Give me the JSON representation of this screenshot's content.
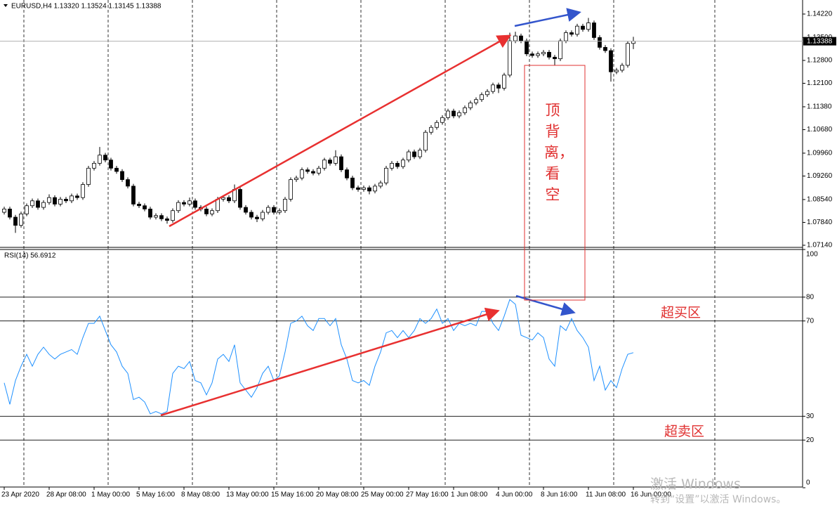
{
  "chart_data": [
    {
      "type": "candlestick",
      "title": "EURUSD,H4  1.13320 1.13524 1.13145 1.13388",
      "open": [
        1.0815,
        1.0825,
        1.08,
        1.0775,
        1.081,
        1.0835,
        1.085,
        1.083,
        1.0845,
        1.086,
        1.084,
        1.0855,
        1.085,
        1.0865,
        1.086,
        1.09,
        1.095,
        1.0965,
        1.099,
        1.0975,
        1.095,
        1.094,
        1.0915,
        1.0895,
        1.084,
        1.0835,
        1.0825,
        1.08,
        1.0805,
        1.0795,
        1.079,
        1.082,
        1.0845,
        1.084,
        1.085,
        1.083,
        1.0825,
        1.081,
        1.082,
        1.0855,
        1.086,
        1.085,
        1.0885,
        1.083,
        1.0815,
        1.08,
        1.0795,
        1.0815,
        1.083,
        1.0815,
        1.082,
        1.0855,
        1.0915,
        1.092,
        1.0945,
        1.094,
        1.0935,
        1.095,
        1.0975,
        1.0965,
        1.0985,
        1.0945,
        1.092,
        1.089,
        1.0885,
        1.089,
        1.088,
        1.0895,
        1.0905,
        1.095,
        1.0965,
        1.0955,
        1.0975,
        1.1,
        1.0985,
        1.1005,
        1.106,
        1.1075,
        1.109,
        1.1105,
        1.1125,
        1.111,
        1.112,
        1.1135,
        1.115,
        1.116,
        1.1175,
        1.1185,
        1.1205,
        1.1195,
        1.1235,
        1.134,
        1.1355,
        1.134,
        1.13,
        1.1295,
        1.13,
        1.1305,
        1.129,
        1.1285,
        1.134,
        1.1365,
        1.136,
        1.1385,
        1.1375,
        1.1395,
        1.135,
        1.132,
        1.131,
        1.1245,
        1.125,
        1.1265,
        1.1332
      ],
      "high": [
        1.0832,
        1.0832,
        1.0807,
        1.0817,
        1.0842,
        1.0857,
        1.0857,
        1.0852,
        1.087,
        1.0867,
        1.0862,
        1.0862,
        1.0872,
        1.0872,
        1.0907,
        1.0957,
        1.0972,
        1.1015,
        1.0997,
        1.0982,
        1.0957,
        1.0947,
        1.0922,
        1.0902,
        1.0847,
        1.0842,
        1.0832,
        1.0812,
        1.0812,
        1.0802,
        1.0827,
        1.0852,
        1.0852,
        1.086,
        1.0857,
        1.0837,
        1.0832,
        1.0827,
        1.0862,
        1.0867,
        1.0867,
        1.09,
        1.0892,
        1.0837,
        1.0822,
        1.0807,
        1.0822,
        1.0837,
        1.0837,
        1.0827,
        1.0862,
        1.0922,
        1.0927,
        1.0952,
        1.0952,
        1.0947,
        1.0957,
        1.0982,
        1.0982,
        1.1005,
        1.0992,
        1.0952,
        1.0927,
        1.0897,
        1.0897,
        1.0897,
        1.0902,
        1.0912,
        1.0957,
        1.0972,
        1.0972,
        1.0982,
        1.1007,
        1.1007,
        1.1012,
        1.1067,
        1.1082,
        1.1097,
        1.1112,
        1.1132,
        1.1132,
        1.1127,
        1.1142,
        1.1157,
        1.1167,
        1.1182,
        1.1192,
        1.1212,
        1.1212,
        1.1242,
        1.1365,
        1.1368,
        1.1362,
        1.1347,
        1.1307,
        1.1307,
        1.1312,
        1.1312,
        1.1297,
        1.1347,
        1.1372,
        1.1372,
        1.1392,
        1.1392,
        1.141,
        1.1402,
        1.1357,
        1.1327,
        1.1317,
        1.1257,
        1.1272,
        1.1339,
        1.13524
      ],
      "low": [
        1.0808,
        1.0793,
        1.0752,
        1.0768,
        1.0803,
        1.0828,
        1.0823,
        1.0823,
        1.0838,
        1.0833,
        1.0833,
        1.0843,
        1.0843,
        1.0853,
        1.0853,
        1.0893,
        1.0943,
        1.0958,
        1.0968,
        1.0943,
        1.0933,
        1.0908,
        1.0888,
        1.0833,
        1.0828,
        1.0818,
        1.0793,
        1.0793,
        1.0788,
        1.078,
        1.0783,
        1.0813,
        1.0833,
        1.0833,
        1.0823,
        1.0818,
        1.0803,
        1.0803,
        1.0813,
        1.0848,
        1.0843,
        1.0843,
        1.0823,
        1.0808,
        1.0793,
        1.0785,
        1.0788,
        1.0808,
        1.0808,
        1.0808,
        1.0813,
        1.0848,
        1.0908,
        1.0913,
        1.0933,
        1.0928,
        1.0928,
        1.0943,
        1.0958,
        1.0958,
        1.0938,
        1.0913,
        1.0883,
        1.0878,
        1.0878,
        1.087,
        1.0873,
        1.0888,
        1.0898,
        1.0943,
        1.0948,
        1.0948,
        1.0968,
        1.0978,
        1.0978,
        1.0998,
        1.1053,
        1.1068,
        1.1083,
        1.1098,
        1.1103,
        1.1103,
        1.1113,
        1.1128,
        1.1143,
        1.1153,
        1.1168,
        1.1178,
        1.118,
        1.1188,
        1.1228,
        1.1333,
        1.1333,
        1.1293,
        1.1288,
        1.1288,
        1.1293,
        1.1283,
        1.1265,
        1.1278,
        1.1333,
        1.1353,
        1.1353,
        1.1368,
        1.1368,
        1.1343,
        1.1313,
        1.1303,
        1.1215,
        1.1238,
        1.1243,
        1.1258,
        1.13145
      ],
      "close": [
        1.0825,
        1.08,
        1.0775,
        1.081,
        1.0835,
        1.085,
        1.083,
        1.0845,
        1.086,
        1.084,
        1.0855,
        1.085,
        1.0865,
        1.086,
        1.09,
        1.095,
        1.0965,
        1.099,
        1.0975,
        1.095,
        1.094,
        1.0915,
        1.0895,
        1.084,
        1.0835,
        1.0825,
        1.08,
        1.0805,
        1.0795,
        1.079,
        1.082,
        1.0845,
        1.084,
        1.085,
        1.083,
        1.0825,
        1.081,
        1.082,
        1.0855,
        1.086,
        1.085,
        1.0885,
        1.083,
        1.0815,
        1.08,
        1.0795,
        1.0815,
        1.083,
        1.0815,
        1.082,
        1.0855,
        1.0915,
        1.092,
        1.0945,
        1.094,
        1.0935,
        1.095,
        1.0975,
        1.0965,
        1.0985,
        1.0945,
        1.092,
        1.089,
        1.0885,
        1.089,
        1.088,
        1.0895,
        1.0905,
        1.095,
        1.0965,
        1.0955,
        1.0975,
        1.1,
        1.0985,
        1.1005,
        1.106,
        1.1075,
        1.109,
        1.1105,
        1.1125,
        1.111,
        1.112,
        1.1135,
        1.115,
        1.116,
        1.1175,
        1.1185,
        1.1205,
        1.1195,
        1.1235,
        1.134,
        1.1355,
        1.134,
        1.13,
        1.1295,
        1.13,
        1.1305,
        1.129,
        1.1285,
        1.134,
        1.1365,
        1.136,
        1.1385,
        1.1375,
        1.1395,
        1.135,
        1.132,
        1.131,
        1.1245,
        1.125,
        1.1265,
        1.1332,
        1.13388
      ],
      "up_color": "#ffffff",
      "down_color": "#000000",
      "xlim": [
        -0.75,
        142.125
      ],
      "ylim": [
        1.07075,
        1.1465
      ],
      "yticks": [
        {
          "value": 1.1422,
          "label": "1.14220"
        },
        {
          "value": 1.135,
          "label": "1.13500"
        },
        {
          "value": 1.128,
          "label": "1.12800"
        },
        {
          "value": 1.121,
          "label": "1.12100"
        },
        {
          "value": 1.1138,
          "label": "1.11380"
        },
        {
          "value": 1.1068,
          "label": "1.10680"
        },
        {
          "value": 1.0996,
          "label": "1.09960"
        },
        {
          "value": 1.0926,
          "label": "1.09260"
        },
        {
          "value": 1.0854,
          "label": "1.08540"
        },
        {
          "value": 1.0784,
          "label": "1.07840"
        },
        {
          "value": 1.0714,
          "label": "1.07140"
        }
      ]
    },
    {
      "type": "line",
      "title": "RSI(14) 56.6912",
      "color": "#1e90ff",
      "values": [
        44,
        35,
        45,
        51,
        56,
        51,
        56,
        59,
        56,
        54,
        56,
        57,
        58,
        56,
        63,
        69,
        69,
        72,
        66,
        60,
        57,
        51,
        48,
        37,
        38,
        36,
        31,
        32,
        31,
        32,
        48,
        51,
        50,
        53,
        45,
        44,
        39,
        44,
        54,
        56,
        53,
        60,
        44,
        41,
        38,
        42,
        48,
        51,
        45,
        47,
        57,
        69,
        70,
        72,
        68,
        66,
        71,
        71,
        68,
        71,
        60,
        54,
        45,
        44,
        45,
        43,
        51,
        57,
        65,
        66,
        63,
        66,
        63,
        66,
        71,
        69,
        71,
        75,
        69,
        71,
        66,
        69,
        68,
        69,
        68,
        74,
        74,
        69,
        66,
        72,
        79,
        77,
        64,
        63,
        62,
        65,
        63,
        54,
        51,
        68,
        66,
        71,
        66,
        63,
        59,
        45,
        51,
        41,
        45,
        42,
        50,
        56,
        56.6912
      ],
      "xlim": [
        -0.75,
        142.125
      ],
      "ylim": [
        0,
        100
      ],
      "yticks": [
        0,
        20,
        30,
        70,
        80,
        100
      ],
      "levels": [
        20,
        30,
        70,
        80
      ],
      "xticks": [
        {
          "value": 0,
          "label": "23 Apr 2020"
        },
        {
          "value": 8,
          "label": "28 Apr 08:00"
        },
        {
          "value": 16,
          "label": "1 May 00:00"
        },
        {
          "value": 24,
          "label": "5 May 16:00"
        },
        {
          "value": 32,
          "label": "8 May 08:00"
        },
        {
          "value": 40,
          "label": "13 May 00:00"
        },
        {
          "value": 48,
          "label": "15 May 16:00"
        },
        {
          "value": 56,
          "label": "20 May 08:00"
        },
        {
          "value": 64,
          "label": "25 May 00:00"
        },
        {
          "value": 72,
          "label": "27 May 16:00"
        },
        {
          "value": 80,
          "label": "1 Jun 08:00"
        },
        {
          "value": 88,
          "label": "4 Jun 00:00"
        },
        {
          "value": 96,
          "label": "8 Jun 16:00"
        },
        {
          "value": 104,
          "label": "11 Jun 08:00"
        },
        {
          "value": 112,
          "label": "16 Jun 00:00"
        }
      ]
    }
  ],
  "annotations": {
    "divergence": "顶背离，看空",
    "overbought": "超买区",
    "oversold": "超卖区"
  },
  "watermark": {
    "line1": "激活 Windows",
    "line2": "转到“设置”以激活 Windows。"
  }
}
